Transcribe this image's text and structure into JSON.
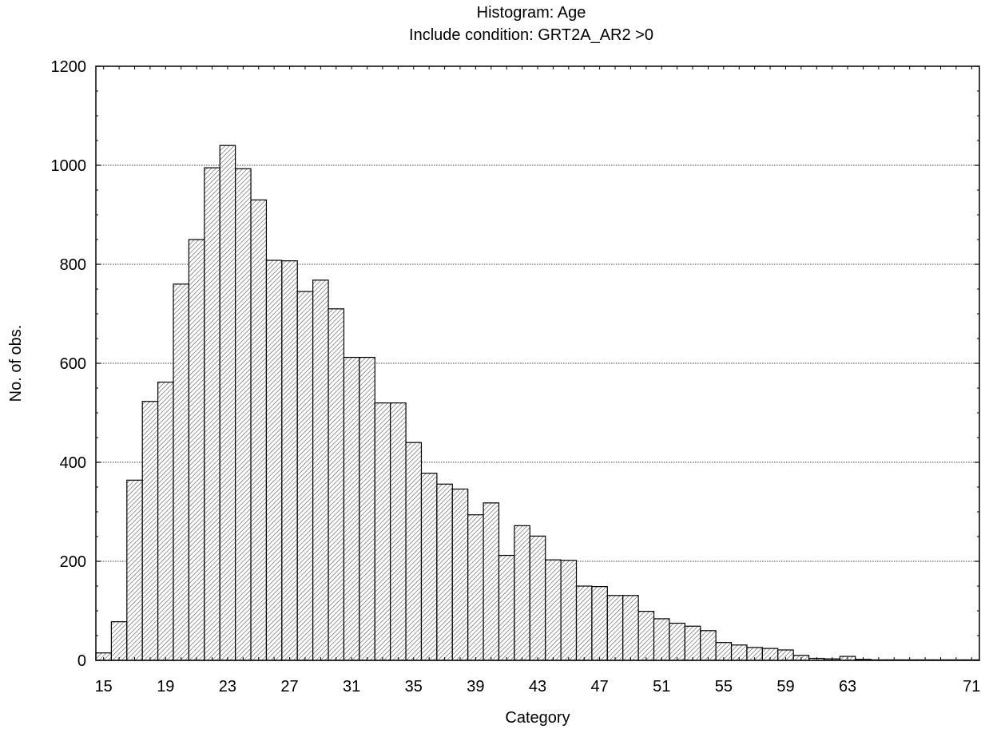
{
  "chart_data": {
    "type": "bar",
    "title": "Histogram: Age",
    "subtitle": "Include condition: GRT2A_AR2 >0",
    "xlabel": "Category",
    "ylabel": "No. of obs.",
    "ylim": [
      0,
      1200
    ],
    "yticks": [
      0,
      200,
      400,
      600,
      800,
      1000,
      1200
    ],
    "xlim": [
      14.5,
      71.5
    ],
    "xticks": [
      15,
      19,
      23,
      27,
      31,
      35,
      39,
      43,
      47,
      51,
      55,
      59,
      63,
      71
    ],
    "grid": "horizontal-dotted",
    "bar_fill": "hatched",
    "categories": [
      15,
      16,
      17,
      18,
      19,
      20,
      21,
      22,
      23,
      24,
      25,
      26,
      27,
      28,
      29,
      30,
      31,
      32,
      33,
      34,
      35,
      36,
      37,
      38,
      39,
      40,
      41,
      42,
      43,
      44,
      45,
      46,
      47,
      48,
      49,
      50,
      51,
      52,
      53,
      54,
      55,
      56,
      57,
      58,
      59,
      60,
      61,
      62,
      63,
      64,
      65,
      66,
      67,
      68,
      69,
      70,
      71
    ],
    "values": [
      15,
      78,
      364,
      523,
      562,
      760,
      850,
      995,
      1040,
      993,
      930,
      808,
      807,
      745,
      768,
      710,
      612,
      612,
      520,
      520,
      440,
      378,
      356,
      346,
      294,
      318,
      212,
      272,
      251,
      203,
      202,
      150,
      149,
      131,
      131,
      99,
      84,
      75,
      69,
      60,
      36,
      31,
      26,
      24,
      21,
      10,
      4,
      3,
      8,
      2,
      1,
      1,
      1,
      1,
      1,
      1,
      1
    ]
  }
}
